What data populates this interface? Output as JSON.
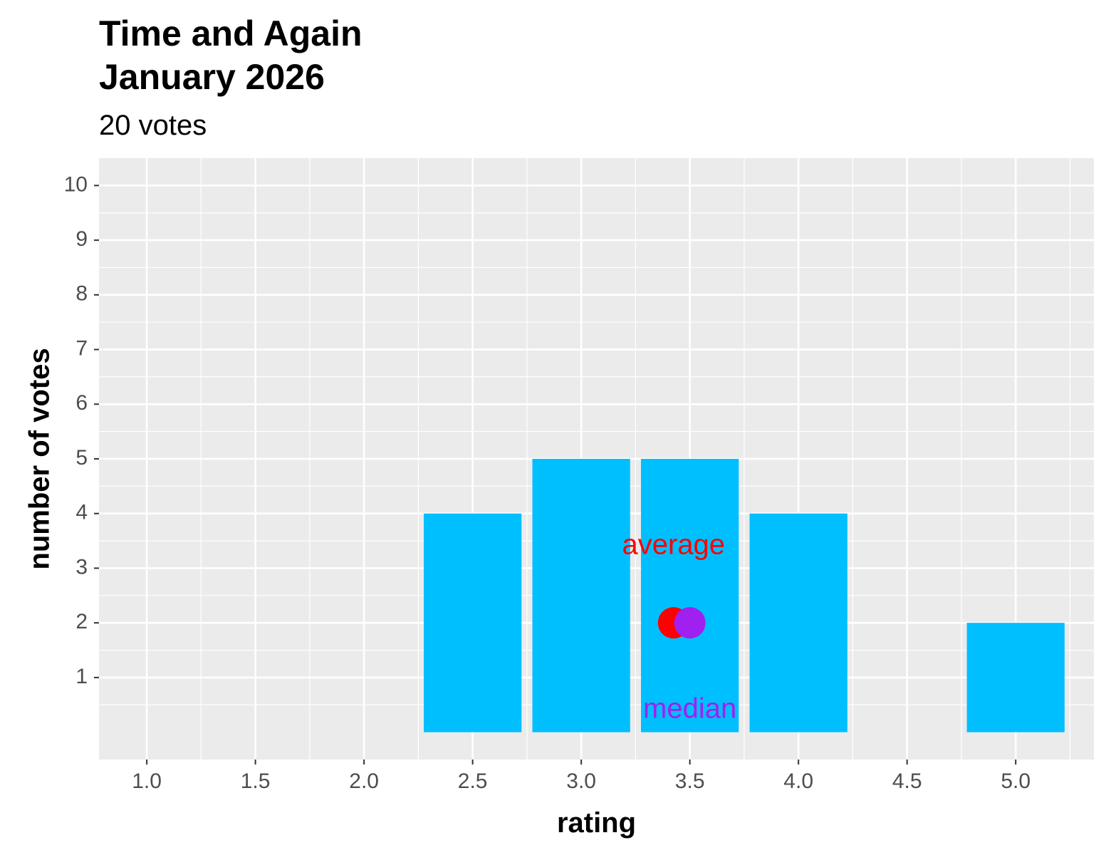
{
  "title_lines": [
    "Time and Again",
    "January 2026"
  ],
  "subtitle": "20 votes",
  "chart_data": {
    "type": "bar",
    "title": "Time and Again\nJanuary 2026",
    "subtitle": "20 votes",
    "xlabel": "rating",
    "ylabel": "number of votes",
    "x": [
      2.5,
      3.0,
      3.5,
      4.0,
      5.0
    ],
    "values": [
      4,
      5,
      5,
      4,
      2
    ],
    "bar_width": 0.45,
    "bar_color": "#00BFFF",
    "xlim": [
      0.78,
      5.36
    ],
    "ylim": [
      -0.5,
      10.5
    ],
    "xticks": [
      1.0,
      1.5,
      2.0,
      2.5,
      3.0,
      3.5,
      4.0,
      4.5,
      5.0
    ],
    "xtick_labels": [
      "1.0",
      "1.5",
      "2.0",
      "2.5",
      "3.0",
      "3.5",
      "4.0",
      "4.5",
      "5.0"
    ],
    "yticks": [
      1,
      2,
      3,
      4,
      5,
      6,
      7,
      8,
      9,
      10
    ],
    "ytick_labels": [
      "1",
      "2",
      "3",
      "4",
      "5",
      "6",
      "7",
      "8",
      "9",
      "10"
    ],
    "grid": true,
    "panel_background": "#EBEBEB",
    "markers": [
      {
        "name": "average",
        "x": 3.425,
        "y": 2,
        "color": "#FF0000"
      },
      {
        "name": "median",
        "x": 3.5,
        "y": 2,
        "color": "#A020F0"
      }
    ],
    "annotations": [
      {
        "text": "average",
        "x": 3.425,
        "y": 3.4,
        "color": "#FF0000"
      },
      {
        "text": "median",
        "x": 3.5,
        "y": 0.4,
        "color": "#A020F0"
      }
    ]
  }
}
